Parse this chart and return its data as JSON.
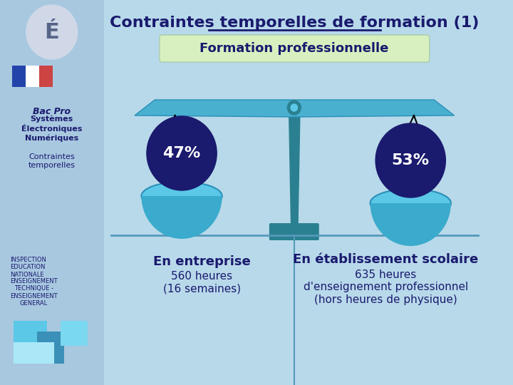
{
  "title": "Contraintes temporelles de formation (1)",
  "subtitle": "Formation professionnelle",
  "bg_color": "#b8d9ea",
  "left_panel_bg": "#cce8f4",
  "right_panel_bg": "#cce8f4",
  "sidebar_bg": "#a8c8e0",
  "title_color": "#1a1a6e",
  "subtitle_bg": "#d8f0c0",
  "subtitle_color": "#1a1a6e",
  "pct_left": "47%",
  "pct_right": "53%",
  "circle_left_color": "#1a1a6e",
  "circle_right_color": "#1a1a6e",
  "pct_text_color": "#ffffff",
  "beam_color": "#4ab0d0",
  "pan_color": "#5bc8e8",
  "pivot_color": "#2a8090",
  "stand_color": "#2a8090",
  "line_color": "#1a1a6e",
  "left_label_bold": "En entreprise",
  "left_label_normal": "560 heures\n(16 semaines)",
  "right_label_bold": "En établissement scolaire",
  "right_label_normal": "635 heures\nd'enseignement professionnel\n(hors heures de physique)",
  "sidebar_title1": "Bac Pro",
  "sidebar_title2": "Systèmes\nÉlectroniques\nNumériques",
  "sidebar_sub1": "Contraintes\ntemporelles",
  "sidebar_footer1": "INSPECTION\nEDUCATION\nNATIONALE",
  "sidebar_footer2": "ENSEIGNEMENT\nTECHNIQUE -\nENSEIGNEMENT\nGENERAL",
  "divider_color": "#5599bb",
  "text_dark": "#1a1a6e",
  "separator_line_color": "#5599bb"
}
